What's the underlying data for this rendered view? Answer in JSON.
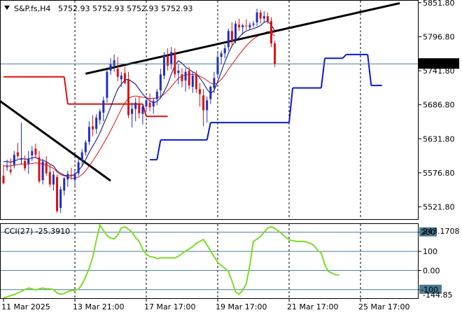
{
  "header": {
    "symbol": "S&P.fs,H4",
    "ohlc": "5752.93 5752.93 5752.93 5752.93"
  },
  "indicator": {
    "label": "CCI(27) -25.3910",
    "max_label": "243.1708",
    "min_label": "-144.85",
    "level_labels": [
      "200",
      "100",
      "0.00",
      "-100"
    ]
  },
  "colors": {
    "bull": "#1f2fbf",
    "bear": "#dd1111",
    "ma_fast": "#000080",
    "ma_slow": "#dd1111",
    "stop_red": "#dd1111",
    "stop_blue": "#0a1ad0",
    "trendline": "#000000",
    "cci": "#7cdc28",
    "level_line": "#4a7a96",
    "price_label_bg": "#000000"
  },
  "chart_data": [
    {
      "type": "candlestick",
      "title": "S&P.fs,H4",
      "y_ticks": [
        5851.8,
        5796.8,
        5741.8,
        5686.8,
        5631.8,
        5576.8,
        5521.8
      ],
      "ylim": [
        5502,
        5855
      ],
      "current_price": 5752.93,
      "x_tick_labels": [
        "11 Mar 2025",
        "13 Mar 21:00",
        "17 Mar 17:00",
        "19 Mar 17:00",
        "21 Mar 17:00",
        "25 Mar 17:00"
      ],
      "x_tick_bars": [
        0,
        20,
        40,
        60,
        80,
        100
      ],
      "candles": [
        [
          5572,
          5590,
          5558,
          5560
        ],
        [
          5586,
          5598,
          5580,
          5588
        ],
        [
          5582,
          5600,
          5574,
          5578
        ],
        [
          5590,
          5612,
          5584,
          5606
        ],
        [
          5610,
          5625,
          5600,
          5604
        ],
        [
          5598,
          5658,
          5590,
          5600
        ],
        [
          5596,
          5605,
          5580,
          5584
        ],
        [
          5592,
          5612,
          5575,
          5600
        ],
        [
          5605,
          5620,
          5596,
          5612
        ],
        [
          5616,
          5624,
          5600,
          5606
        ],
        [
          5602,
          5612,
          5560,
          5563
        ],
        [
          5565,
          5600,
          5558,
          5595
        ],
        [
          5594,
          5604,
          5572,
          5576
        ],
        [
          5578,
          5590,
          5554,
          5558
        ],
        [
          5558,
          5580,
          5548,
          5574
        ],
        [
          5570,
          5574,
          5512,
          5515
        ],
        [
          5520,
          5555,
          5512,
          5550
        ],
        [
          5548,
          5570,
          5540,
          5568
        ],
        [
          5566,
          5580,
          5554,
          5575
        ],
        [
          5574,
          5585,
          5566,
          5572
        ],
        [
          5565,
          5580,
          5555,
          5576
        ],
        [
          5576,
          5600,
          5572,
          5594
        ],
        [
          5596,
          5615,
          5588,
          5610
        ],
        [
          5610,
          5630,
          5605,
          5626
        ],
        [
          5627,
          5660,
          5622,
          5651
        ],
        [
          5652,
          5670,
          5636,
          5647
        ],
        [
          5648,
          5672,
          5640,
          5666
        ],
        [
          5662,
          5680,
          5655,
          5676
        ],
        [
          5674,
          5700,
          5660,
          5694
        ],
        [
          5698,
          5745,
          5690,
          5740
        ],
        [
          5742,
          5762,
          5735,
          5752
        ],
        [
          5750,
          5768,
          5740,
          5759
        ],
        [
          5745,
          5764,
          5725,
          5732
        ],
        [
          5728,
          5740,
          5716,
          5734
        ],
        [
          5738,
          5748,
          5720,
          5722
        ],
        [
          5728,
          5740,
          5665,
          5670
        ],
        [
          5672,
          5690,
          5650,
          5680
        ],
        [
          5680,
          5698,
          5660,
          5690
        ],
        [
          5688,
          5700,
          5665,
          5673
        ],
        [
          5672,
          5686,
          5655,
          5684
        ],
        [
          5684,
          5700,
          5675,
          5694
        ],
        [
          5690,
          5705,
          5676,
          5683
        ],
        [
          5684,
          5698,
          5672,
          5693
        ],
        [
          5696,
          5712,
          5686,
          5708
        ],
        [
          5710,
          5745,
          5700,
          5736
        ],
        [
          5734,
          5772,
          5728,
          5766
        ],
        [
          5766,
          5778,
          5742,
          5750
        ],
        [
          5752,
          5780,
          5744,
          5772
        ],
        [
          5770,
          5778,
          5730,
          5736
        ],
        [
          5738,
          5752,
          5720,
          5742
        ],
        [
          5736,
          5746,
          5715,
          5725
        ],
        [
          5726,
          5746,
          5708,
          5740
        ],
        [
          5742,
          5748,
          5712,
          5718
        ],
        [
          5716,
          5740,
          5706,
          5734
        ],
        [
          5736,
          5742,
          5706,
          5712
        ],
        [
          5712,
          5722,
          5684,
          5704
        ],
        [
          5702,
          5712,
          5652,
          5678
        ],
        [
          5678,
          5700,
          5658,
          5694
        ],
        [
          5696,
          5718,
          5688,
          5716
        ],
        [
          5714,
          5740,
          5706,
          5730
        ],
        [
          5736,
          5770,
          5730,
          5764
        ],
        [
          5764,
          5774,
          5752,
          5770
        ],
        [
          5770,
          5784,
          5762,
          5778
        ],
        [
          5780,
          5810,
          5774,
          5806
        ],
        [
          5806,
          5820,
          5780,
          5790
        ],
        [
          5792,
          5822,
          5786,
          5818
        ],
        [
          5816,
          5826,
          5806,
          5812
        ],
        [
          5812,
          5818,
          5800,
          5815
        ],
        [
          5815,
          5825,
          5808,
          5814
        ],
        [
          5812,
          5820,
          5808,
          5816
        ],
        [
          5816,
          5822,
          5812,
          5818
        ],
        [
          5820,
          5842,
          5814,
          5836
        ],
        [
          5836,
          5840,
          5818,
          5826
        ],
        [
          5826,
          5838,
          5820,
          5830
        ],
        [
          5830,
          5836,
          5818,
          5822
        ],
        [
          5822,
          5828,
          5780,
          5786
        ],
        [
          5786,
          5790,
          5748,
          5753
        ]
      ],
      "overlays": {
        "ma_fast": [
          5595,
          5595,
          5594,
          5596,
          5598,
          5600,
          5599,
          5599,
          5601,
          5602,
          5598,
          5597,
          5595,
          5591,
          5588,
          5580,
          5576,
          5573,
          5572,
          5572,
          5574,
          5580,
          5588,
          5598,
          5610,
          5620,
          5630,
          5641,
          5655,
          5668,
          5683,
          5698,
          5712,
          5720,
          5727,
          5728,
          5724,
          5720,
          5712,
          5704,
          5698,
          5693,
          5690,
          5692,
          5698,
          5708,
          5720,
          5736,
          5750,
          5758,
          5754,
          5748,
          5744,
          5740,
          5737,
          5730,
          5722,
          5712,
          5705,
          5710,
          5724,
          5740,
          5756,
          5770,
          5782,
          5790,
          5796,
          5802,
          5806,
          5808,
          5810,
          5812,
          5815,
          5820,
          5822,
          5816,
          5806
        ],
        "ma_slow": [
          5588,
          5588,
          5588,
          5589,
          5590,
          5591,
          5591,
          5591,
          5592,
          5593,
          5592,
          5591,
          5590,
          5587,
          5584,
          5578,
          5574,
          5572,
          5570,
          5568,
          5568,
          5570,
          5574,
          5580,
          5588,
          5596,
          5605,
          5614,
          5624,
          5634,
          5645,
          5656,
          5668,
          5680,
          5690,
          5697,
          5700,
          5701,
          5700,
          5699,
          5698,
          5697,
          5697,
          5698,
          5700,
          5704,
          5710,
          5716,
          5723,
          5730,
          5733,
          5735,
          5736,
          5736,
          5735,
          5733,
          5730,
          5726,
          5722,
          5720,
          5722,
          5728,
          5735,
          5744,
          5752,
          5760,
          5768,
          5775,
          5782,
          5788,
          5793,
          5797,
          5800,
          5803,
          5805,
          5803,
          5798
        ],
        "stop": [
          {
            "from": 0,
            "to": 17,
            "value": 5732,
            "trend": "down"
          },
          {
            "from": 18,
            "to": 39,
            "value": 5688,
            "trend": "down"
          },
          {
            "from": 40,
            "to": 46,
            "value": 5668,
            "trend": "down"
          },
          {
            "from": 41,
            "to": 43,
            "value": 5598,
            "trend": "up"
          },
          {
            "from": 44,
            "to": 57,
            "value": 5630,
            "trend": "up"
          },
          {
            "from": 58,
            "to": 80,
            "value": 5658,
            "trend": "up"
          },
          {
            "from": 81,
            "to": 89,
            "value": 5714,
            "trend": "up"
          },
          {
            "from": 90,
            "to": 95,
            "value": 5762,
            "trend": "up"
          },
          {
            "from": 96,
            "to": 102,
            "value": 5768,
            "trend": "up"
          },
          {
            "from": 103,
            "to": 106,
            "value": 5718,
            "trend": "up"
          }
        ],
        "trendlines": [
          {
            "from": [
              -2,
              5697
            ],
            "to": [
              30,
              5564
            ]
          },
          {
            "from": [
              23,
              5737
            ],
            "to": [
              111,
              5851
            ]
          }
        ]
      }
    },
    {
      "type": "line",
      "title": "CCI(27) -25.3910",
      "ylim": [
        -145,
        243
      ],
      "levels": [
        200,
        100,
        0,
        -100
      ],
      "values": [
        -142,
        -138,
        -132,
        -126,
        -118,
        -110,
        -100,
        -92,
        -96,
        -102,
        -96,
        -92,
        -96,
        -96,
        -100,
        -118,
        -124,
        -120,
        -110,
        -106,
        -104,
        -98,
        -72,
        -35,
        12,
        70,
        158,
        238,
        210,
        182,
        170,
        165,
        185,
        222,
        228,
        216,
        200,
        172,
        152,
        110,
        85,
        72,
        70,
        62,
        66,
        66,
        66,
        66,
        66,
        75,
        88,
        102,
        112,
        125,
        142,
        152,
        162,
        134,
        102,
        72,
        42,
        26,
        12,
        -5,
        -55,
        -112,
        -124,
        -104,
        -70,
        28,
        152,
        164,
        178,
        200,
        222,
        228,
        220,
        206,
        192,
        174,
        160,
        156,
        152,
        152,
        152,
        148,
        142,
        130,
        105,
        92,
        30,
        -5,
        -14,
        -22,
        -25
      ]
    }
  ]
}
